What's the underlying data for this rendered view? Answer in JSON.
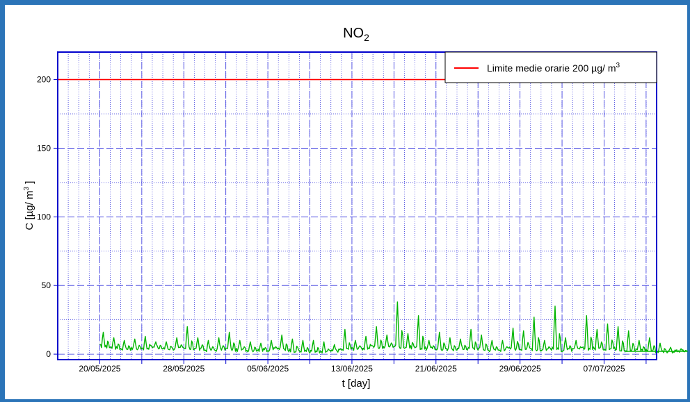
{
  "chart_data": {
    "type": "line",
    "title": "NO",
    "title_subscript": "2",
    "xlabel": "t [day]",
    "ylabel": "C [µg/ m",
    "ylabel_superscript": "3",
    "ylabel_suffix": " ]",
    "ylim": [
      -4,
      220
    ],
    "xlim": [
      "2025-05-16",
      "2025-07-12"
    ],
    "x_ticks": [
      "20/05/2025",
      "28/05/2025",
      "05/06/2025",
      "13/06/2025",
      "21/06/2025",
      "29/06/2025",
      "07/07/2025"
    ],
    "y_ticks": [
      0,
      50,
      100,
      150,
      200
    ],
    "grid": true,
    "legend_position": "top-right",
    "series": [
      {
        "name": "Limite medie orarie 200 µg/ m",
        "name_superscript": "3",
        "color": "#ff0000",
        "x": [
          "2025-05-16",
          "2025-07-12"
        ],
        "values": [
          200,
          200
        ]
      },
      {
        "color": "#00b400",
        "x_start": "2025-05-20",
        "x_end": "2025-07-09",
        "daily_peaks": [
          16,
          12,
          10,
          11,
          13,
          9,
          9,
          12,
          20,
          12,
          10,
          12,
          16,
          10,
          9,
          8,
          10,
          14,
          11,
          10,
          10,
          9,
          7,
          18,
          10,
          13,
          20,
          14,
          38,
          15,
          28,
          10,
          16,
          12,
          11,
          18,
          14,
          10,
          10,
          19,
          17,
          27,
          10,
          35,
          12,
          10,
          28,
          18,
          22,
          20,
          17,
          10,
          12,
          8,
          5,
          4
        ],
        "daily_base": [
          6,
          5,
          4,
          4,
          4,
          5,
          4,
          4,
          4,
          4,
          3,
          3,
          4,
          3,
          3,
          3,
          3,
          4,
          3,
          2,
          2,
          1,
          2,
          3,
          4,
          4,
          5,
          5,
          6,
          5,
          5,
          4,
          4,
          3,
          4,
          4,
          4,
          3,
          3,
          4,
          4,
          4,
          3,
          4,
          3,
          3,
          4,
          4,
          4,
          4,
          3,
          3,
          3,
          2,
          2,
          2
        ]
      }
    ]
  }
}
